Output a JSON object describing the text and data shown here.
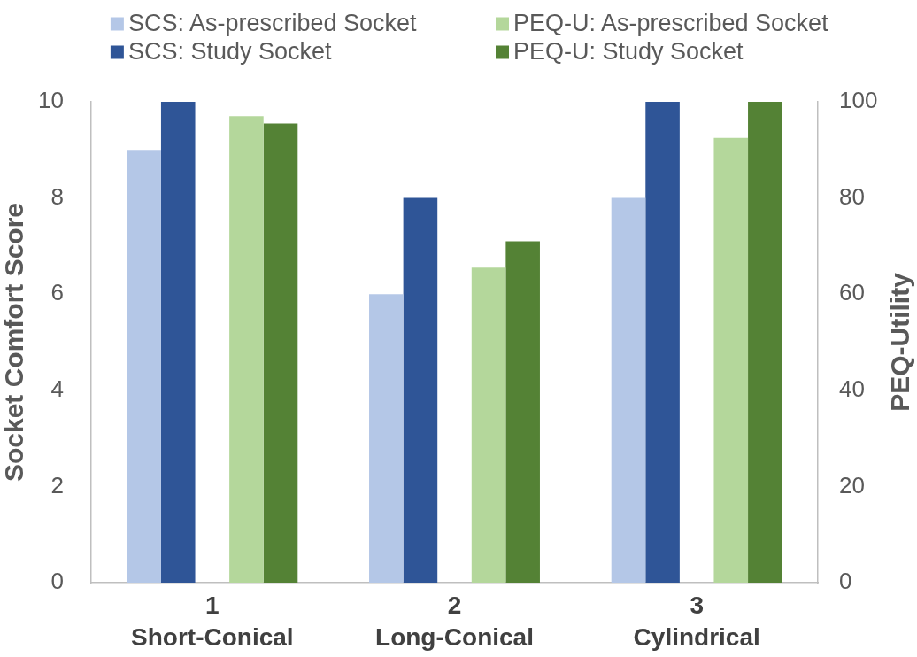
{
  "chart_data": {
    "type": "bar",
    "categories": [
      "1\nShort-Conical",
      "2\nLong-Conical",
      "3\nCylindrical"
    ],
    "ylabel": "Socket Comfort Score",
    "y2label": "PEQ-Utility",
    "ylim": [
      0,
      10
    ],
    "yticks": [
      0,
      2,
      4,
      6,
      8,
      10
    ],
    "y2lim": [
      0,
      100
    ],
    "y2ticks": [
      0,
      20,
      40,
      60,
      80,
      100
    ],
    "grid": false,
    "legend": "top",
    "series": [
      {
        "name": "SCS: As-prescribed Socket",
        "color": "#b4c7e7",
        "values": [
          9,
          6,
          8
        ]
      },
      {
        "name": "SCS: Study Socket",
        "color": "#2f5597",
        "values": [
          10,
          8,
          10
        ]
      },
      {
        "name": "PEQ-U: As-prescribed Socket",
        "color": "#b4d79b",
        "axis": "y2",
        "values": [
          97,
          65.5,
          92.5
        ]
      },
      {
        "name": "PEQ-U: Study Socket",
        "color": "#548235",
        "axis": "y2",
        "values": [
          95.5,
          71,
          100
        ]
      }
    ]
  }
}
